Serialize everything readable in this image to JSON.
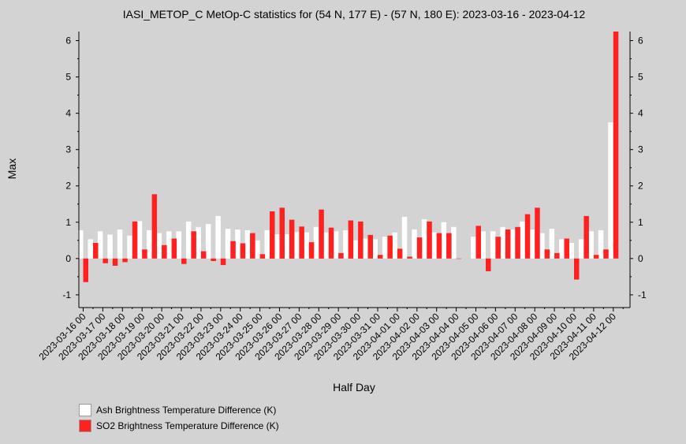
{
  "chart_data": {
    "type": "bar",
    "title": "IASI_METOP_C MetOp-C statistics for (54 N, 177 E) - (57 N, 180 E): 2023-03-16 - 2023-04-12",
    "xlabel": "Half Day",
    "ylabel": "Max",
    "ylim": [
      -1.35,
      6.25
    ],
    "yticks": [
      -1,
      0,
      1,
      2,
      3,
      4,
      5,
      6
    ],
    "x_tick_labels": [
      "2023-03-16 00",
      "2023-03-17 00",
      "2023-03-18 00",
      "2023-03-19 00",
      "2023-03-20 00",
      "2023-03-21 00",
      "2023-03-22 00",
      "2023-03-23 00",
      "2023-03-24 00",
      "2023-03-25 00",
      "2023-03-26 00",
      "2023-03-27 00",
      "2023-03-28 00",
      "2023-03-29 00",
      "2023-03-30 00",
      "2023-03-31 00",
      "2023-04-01 00",
      "2023-04-02 00",
      "2023-04-03 00",
      "2023-04-04 00",
      "2023-04-05 00",
      "2023-04-06 00",
      "2023-04-07 00",
      "2023-04-08 00",
      "2023-04-09 00",
      "2023-04-10 00",
      "2023-04-11 00",
      "2023-04-12 00"
    ],
    "legend_position": "bottom-left",
    "series": [
      {
        "name": "Ash Brightness Temperature Difference (K)",
        "color": "#ffffff",
        "values": [
          0.78,
          0.53,
          0.75,
          0.66,
          0.8,
          0.63,
          1.03,
          0.78,
          0.7,
          0.75,
          0.75,
          1.02,
          0.87,
          0.95,
          1.17,
          0.82,
          0.8,
          0.78,
          0.5,
          0.78,
          0.67,
          0.67,
          0.73,
          0.72,
          0.87,
          0.72,
          0.75,
          0.78,
          0.5,
          0.55,
          0.53,
          0.6,
          0.72,
          1.15,
          0.8,
          1.08,
          0.72,
          1.0,
          0.87,
          null,
          0.6,
          0.75,
          0.75,
          0.87,
          0.8,
          1.02,
          0.8,
          0.7,
          0.82,
          0.53,
          0.43,
          0.53,
          0.75,
          0.78,
          3.75
        ]
      },
      {
        "name": "SO2 Brightness Temperature Difference (K)",
        "color": "#ff2020",
        "values": [
          -0.65,
          0.43,
          -0.13,
          -0.2,
          -0.1,
          1.02,
          0.25,
          1.77,
          0.37,
          0.55,
          -0.15,
          0.75,
          0.2,
          -0.07,
          -0.18,
          0.48,
          0.42,
          0.7,
          0.12,
          1.3,
          1.4,
          1.07,
          0.88,
          0.45,
          1.35,
          0.85,
          0.15,
          1.05,
          1.02,
          0.65,
          0.1,
          0.63,
          0.27,
          0.05,
          0.58,
          1.02,
          0.7,
          0.7,
          0.0,
          null,
          0.9,
          -0.35,
          0.6,
          0.8,
          0.87,
          1.22,
          1.4,
          0.25,
          0.15,
          0.55,
          -0.58,
          1.17,
          0.1,
          0.25,
          6.25
        ]
      }
    ]
  }
}
